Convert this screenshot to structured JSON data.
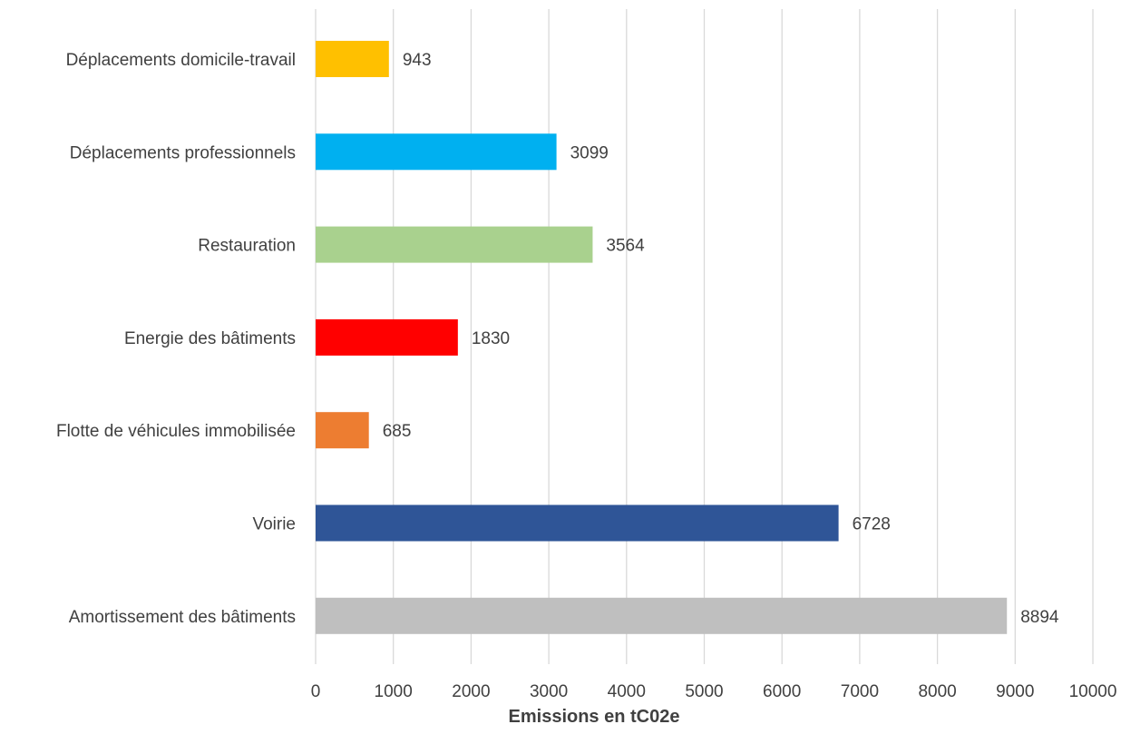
{
  "chart_data": {
    "type": "bar",
    "orientation": "horizontal",
    "categories": [
      "Déplacements domicile-travail",
      "Déplacements professionnels",
      "Restauration",
      "Energie des bâtiments",
      "Flotte de véhicules immobilisée",
      "Voirie",
      "Amortissement des bâtiments"
    ],
    "values": [
      943,
      3099,
      3564,
      1830,
      685,
      6728,
      8894
    ],
    "colors": [
      "#ffc000",
      "#00b0f0",
      "#a9d18e",
      "#ff0000",
      "#ed7d31",
      "#2f5597",
      "#bfbfbf"
    ],
    "xlabel": "Emissions en tC02e",
    "xlim": [
      0,
      10000
    ],
    "x_ticks": [
      0,
      1000,
      2000,
      3000,
      4000,
      5000,
      6000,
      7000,
      8000,
      9000,
      10000
    ],
    "grid": "vertical",
    "data_labels": true
  }
}
